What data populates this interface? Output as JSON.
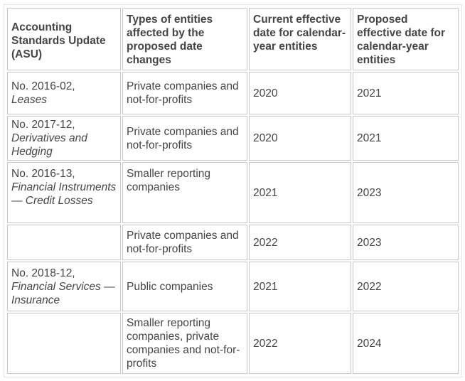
{
  "headers": [
    "Accounting Standards Update (ASU)",
    "Types of entities affected by the proposed date changes",
    "Current effective date for calendar-year entities",
    "Proposed effective date for calendar-year entities"
  ],
  "rows": [
    {
      "asu_no": "No. 2016-02,",
      "asu_name": "Leases",
      "entities": "Private companies and not-for-profits",
      "current": "2020",
      "proposed": "2021"
    },
    {
      "asu_no": "No. 2017-12,",
      "asu_name": "Derivatives and Hedging",
      "entities": "Private companies and not-for-profits",
      "current": "2020",
      "proposed": "2021"
    },
    {
      "asu_no": "No. 2016-13,",
      "asu_name": "Financial Instruments — Credit Losses",
      "entities": "Smaller reporting companies",
      "current": "2021",
      "proposed": "2023"
    },
    {
      "asu_no": "",
      "asu_name": "",
      "entities": "Private companies and not-for-profits",
      "current": "2022",
      "proposed": "2023"
    },
    {
      "asu_no": "No. 2018-12,",
      "asu_name": "Financial Services — Insurance",
      "entities": "Public companies",
      "current": "2021",
      "proposed": "2022"
    },
    {
      "asu_no": "",
      "asu_name": "",
      "entities": "Smaller reporting companies, private companies and not-for-profits",
      "current": "2022",
      "proposed": "2024"
    }
  ]
}
